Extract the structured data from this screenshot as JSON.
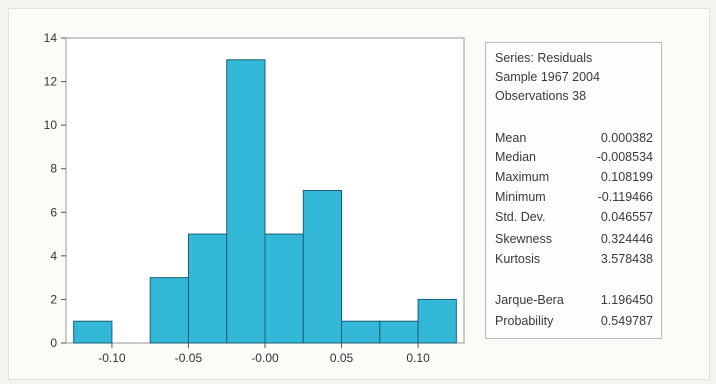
{
  "chart_data": {
    "type": "bar",
    "x": [
      -0.125,
      -0.075,
      -0.05,
      -0.025,
      0.0,
      0.025,
      0.05,
      0.075,
      0.1
    ],
    "bin_width": 0.025,
    "values": [
      1,
      3,
      5,
      13,
      5,
      7,
      1,
      1,
      2
    ],
    "xlim": [
      -0.13,
      0.13
    ],
    "ylim": [
      0,
      14
    ],
    "x_ticks": [
      "-0.10",
      "-0.05",
      "-0.00",
      "0.05",
      "0.10"
    ],
    "x_tick_values": [
      -0.1,
      -0.05,
      0.0,
      0.05,
      0.1
    ],
    "y_ticks": [
      "0",
      "2",
      "4",
      "6",
      "8",
      "10",
      "12",
      "14"
    ],
    "y_tick_values": [
      0,
      2,
      4,
      6,
      8,
      10,
      12,
      14
    ],
    "grid": false,
    "bar_color": "#34b8d8",
    "bar_edge_color": "#1a5f77"
  },
  "stats": {
    "series": "Series: Residuals",
    "sample": "Sample 1967 2004",
    "observations": "Observations 38",
    "rows": [
      {
        "label": "Mean",
        "value": "0.000382"
      },
      {
        "label": "Median",
        "value": "-0.008534"
      },
      {
        "label": "Maximum",
        "value": "0.108199"
      },
      {
        "label": "Minimum",
        "value": "-0.119466"
      },
      {
        "label": "Std. Dev.",
        "value": "0.046557"
      },
      {
        "label": "Skewness",
        "value": "0.324446"
      },
      {
        "label": "Kurtosis",
        "value": "3.578438"
      }
    ],
    "tests": [
      {
        "label": "Jarque-Bera",
        "value": "1.196450"
      },
      {
        "label": "Probability",
        "value": "0.549787"
      }
    ]
  }
}
